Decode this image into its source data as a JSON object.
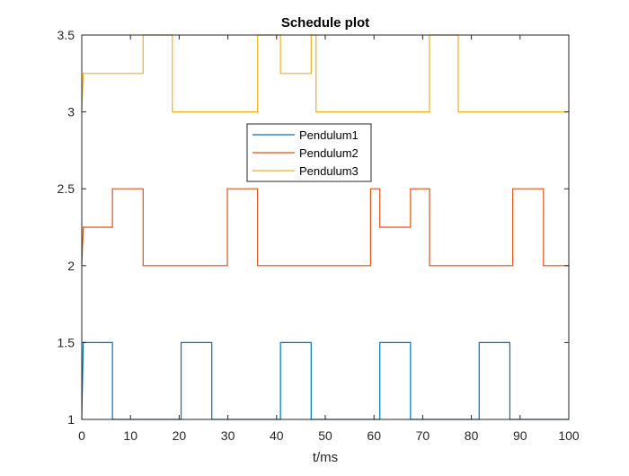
{
  "chart_data": {
    "type": "line",
    "title": "Schedule plot",
    "xlabel": "t/ms",
    "ylabel": "",
    "xlim": [
      0,
      100
    ],
    "ylim": [
      1,
      3.5
    ],
    "xticks": [
      0,
      10,
      20,
      30,
      40,
      50,
      60,
      70,
      80,
      90,
      100
    ],
    "yticks": [
      1,
      1.5,
      2,
      2.5,
      3,
      3.5
    ],
    "xtick_labels": [
      "0",
      "10",
      "20",
      "30",
      "40",
      "50",
      "60",
      "70",
      "80",
      "90",
      "100"
    ],
    "ytick_labels": [
      "1",
      "1.5",
      "2",
      "2.5",
      "3",
      "3.5"
    ],
    "grid": false,
    "legend_position": "upper-center",
    "series": [
      {
        "name": "Pendulum1",
        "color": "#0072BD",
        "x": [
          0,
          0.3,
          6.3,
          6.3,
          20.4,
          20.4,
          26.7,
          26.7,
          40.8,
          40.8,
          47.1,
          47.1,
          61.2,
          61.2,
          67.5,
          67.5,
          81.6,
          81.6,
          87.9,
          87.9,
          100
        ],
        "y": [
          1,
          1.5,
          1.5,
          1,
          1,
          1.5,
          1.5,
          1,
          1,
          1.5,
          1.5,
          1,
          1,
          1.5,
          1.5,
          1,
          1,
          1.5,
          1.5,
          1,
          1
        ]
      },
      {
        "name": "Pendulum2",
        "color": "#D95319",
        "x": [
          0,
          0.3,
          6.3,
          6.3,
          12.6,
          12.6,
          29.9,
          29.9,
          36.1,
          36.1,
          59.3,
          59.3,
          61.2,
          61.2,
          67.5,
          67.5,
          71.4,
          71.4,
          88.5,
          88.5,
          94.8,
          94.8,
          100
        ],
        "y": [
          2,
          2.25,
          2.25,
          2.5,
          2.5,
          2,
          2,
          2.5,
          2.5,
          2,
          2,
          2.5,
          2.5,
          2.25,
          2.25,
          2.5,
          2.5,
          2,
          2,
          2.5,
          2.5,
          2,
          2
        ]
      },
      {
        "name": "Pendulum3",
        "color": "#EDB120",
        "x": [
          0,
          0.3,
          12.6,
          12.6,
          18.6,
          18.6,
          36.1,
          36.1,
          40.8,
          40.8,
          47.1,
          47.1,
          48.1,
          48.1,
          71.4,
          71.4,
          77.3,
          77.3,
          100
        ],
        "y": [
          3,
          3.25,
          3.25,
          3.5,
          3.5,
          3,
          3,
          3.5,
          3.5,
          3.25,
          3.25,
          3.5,
          3.5,
          3,
          3,
          3.5,
          3.5,
          3,
          3
        ]
      }
    ]
  }
}
